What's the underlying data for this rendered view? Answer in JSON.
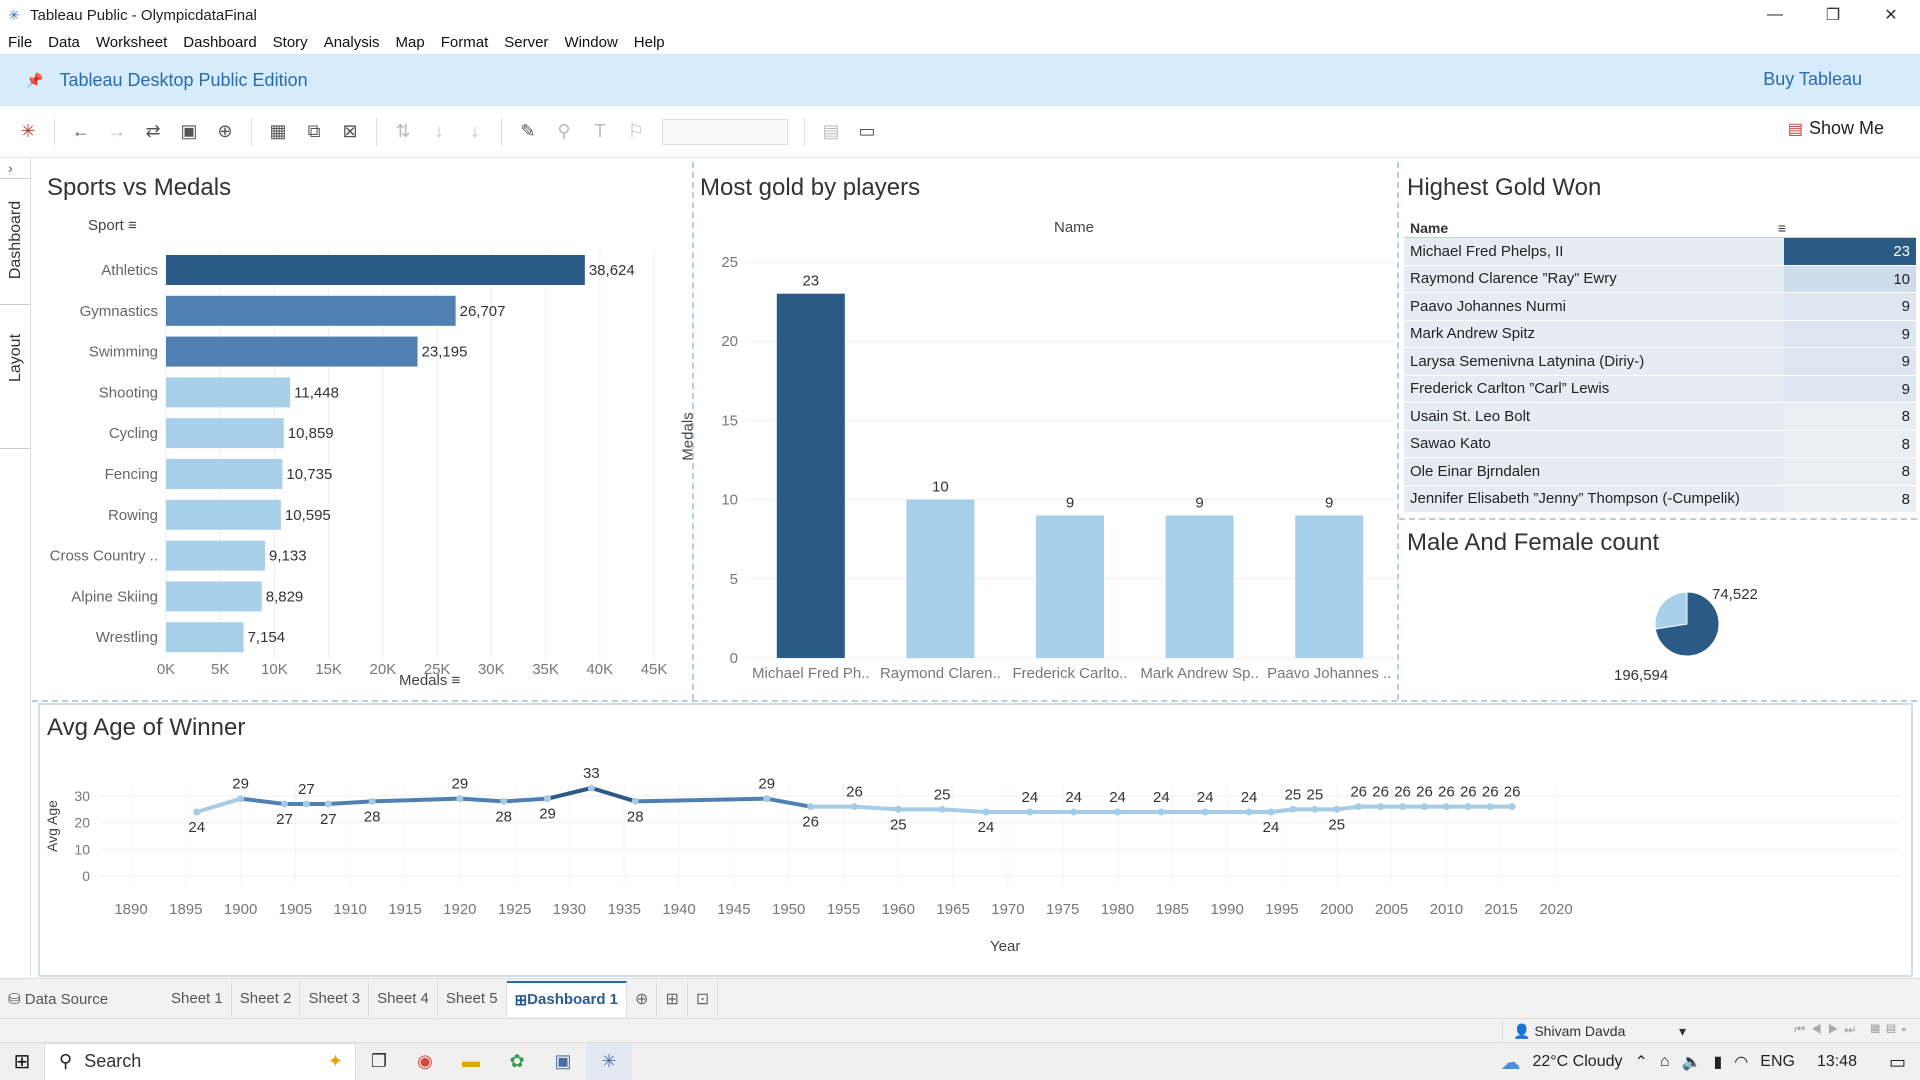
{
  "window": {
    "title": "Tableau Public - OlympicdataFinal",
    "minimize": "—",
    "maximize": "❐",
    "close": "✕"
  },
  "menu": [
    "File",
    "Data",
    "Worksheet",
    "Dashboard",
    "Story",
    "Analysis",
    "Map",
    "Format",
    "Server",
    "Window",
    "Help"
  ],
  "banner": {
    "edition": "Tableau Desktop Public Edition",
    "buy": "Buy Tableau"
  },
  "toolbar": {
    "show_me": "Show Me"
  },
  "left_tabs": {
    "dashboard": "Dashboard",
    "layout": "Layout"
  },
  "colors": {
    "dark": "#2b5a87",
    "mid": "#4f80b1",
    "light": "#a8d0ea",
    "line": "#a6cbe6",
    "accent": "#2a6cab"
  },
  "chart_data": [
    {
      "type": "bar",
      "orientation": "horizontal",
      "title": "Sports vs Medals",
      "category_label": "Sport",
      "xlabel": "Medals",
      "categories": [
        "Athletics",
        "Gymnastics",
        "Swimming",
        "Shooting",
        "Cycling",
        "Fencing",
        "Rowing",
        "Cross Country ..",
        "Alpine Skiing",
        "Wrestling"
      ],
      "values": [
        38624,
        26707,
        23195,
        11448,
        10859,
        10735,
        10595,
        9133,
        8829,
        7154
      ],
      "value_labels": [
        "38,624",
        "26,707",
        "23,195",
        "11,448",
        "10,859",
        "10,735",
        "10,595",
        "9,133",
        "8,829",
        "7,154"
      ],
      "xticks": [
        "0K",
        "5K",
        "10K",
        "15K",
        "20K",
        "25K",
        "30K",
        "35K",
        "40K",
        "45K"
      ],
      "xlim": [
        0,
        45000
      ]
    },
    {
      "type": "bar",
      "title": "Most gold by players",
      "header": "Name",
      "ylabel": "Medals",
      "categories": [
        "Michael Fred Ph..",
        "Raymond Claren..",
        "Frederick Carlto..",
        "Mark Andrew Sp..",
        "Paavo Johannes .."
      ],
      "values": [
        23,
        10,
        9,
        9,
        9
      ],
      "yticks": [
        "0",
        "5",
        "10",
        "15",
        "20",
        "25"
      ],
      "ylim": [
        0,
        25
      ]
    },
    {
      "type": "table",
      "title": "Highest Gold Won",
      "header": "Name",
      "rows": [
        {
          "name": "Michael Fred Phelps, II",
          "value": 23
        },
        {
          "name": "Raymond Clarence ”Ray” Ewry",
          "value": 10
        },
        {
          "name": "Paavo Johannes Nurmi",
          "value": 9
        },
        {
          "name": "Mark Andrew Spitz",
          "value": 9
        },
        {
          "name": "Larysa Semenivna Latynina (Diriy-)",
          "value": 9
        },
        {
          "name": "Frederick Carlton ”Carl” Lewis",
          "value": 9
        },
        {
          "name": "Usain St. Leo Bolt",
          "value": 8
        },
        {
          "name": "Sawao Kato",
          "value": 8
        },
        {
          "name": "Ole Einar Bjrndalen",
          "value": 8
        },
        {
          "name": "Jennifer Elisabeth ”Jenny” Thompson (-Cumpelik)",
          "value": 8
        }
      ]
    },
    {
      "type": "pie",
      "title": "Male And Female count",
      "values": [
        196594,
        74522
      ],
      "value_labels": [
        "196,594",
        "74,522"
      ]
    },
    {
      "type": "line",
      "title": "Avg Age of Winner",
      "xlabel": "Year",
      "ylabel": "Avg Age",
      "xlim": [
        1890,
        2020
      ],
      "ylim": [
        0,
        30
      ],
      "yticks": [
        "0",
        "10",
        "20",
        "30"
      ],
      "xticks": [
        "1890",
        "1895",
        "1900",
        "1905",
        "1910",
        "1915",
        "1920",
        "1925",
        "1930",
        "1935",
        "1940",
        "1945",
        "1950",
        "1955",
        "1960",
        "1965",
        "1970",
        "1975",
        "1980",
        "1985",
        "1990",
        "1995",
        "2000",
        "2005",
        "2010",
        "2015",
        "2020"
      ],
      "x": [
        1896,
        1900,
        1904,
        1906,
        1908,
        1912,
        1920,
        1924,
        1928,
        1932,
        1936,
        1948,
        1952,
        1956,
        1960,
        1964,
        1968,
        1972,
        1976,
        1980,
        1984,
        1988,
        1992,
        1994,
        1996,
        1998,
        2000,
        2002,
        2004,
        2006,
        2008,
        2010,
        2012,
        2014,
        2016
      ],
      "y": [
        24,
        29,
        27,
        27,
        27,
        28,
        29,
        28,
        29,
        33,
        28,
        29,
        26,
        26,
        25,
        25,
        24,
        24,
        24,
        24,
        24,
        24,
        24,
        24,
        25,
        25,
        25,
        26,
        26,
        26,
        26,
        26,
        26,
        26,
        26
      ],
      "labels": [
        "24",
        "29",
        "27",
        "27",
        "27",
        "28",
        "29",
        "28",
        "29",
        "33",
        "28",
        "29",
        "26",
        "26",
        "25",
        "25",
        "24",
        "24",
        "24",
        "24",
        "24",
        "24",
        "24",
        "24",
        "25",
        "25",
        "25",
        "26",
        "26",
        "26",
        "26",
        "26",
        "26",
        "26",
        "26"
      ]
    }
  ],
  "sheet_tabs": {
    "data_source": "Data Source",
    "tabs": [
      "Sheet 1",
      "Sheet 2",
      "Sheet 3",
      "Sheet 4",
      "Sheet 5",
      "Dashboard 1"
    ]
  },
  "status": {
    "user": "Shivam Davda"
  },
  "taskbar": {
    "search": "Search",
    "weather": "22°C  Cloudy",
    "lang": "ENG",
    "time": "13:48"
  }
}
